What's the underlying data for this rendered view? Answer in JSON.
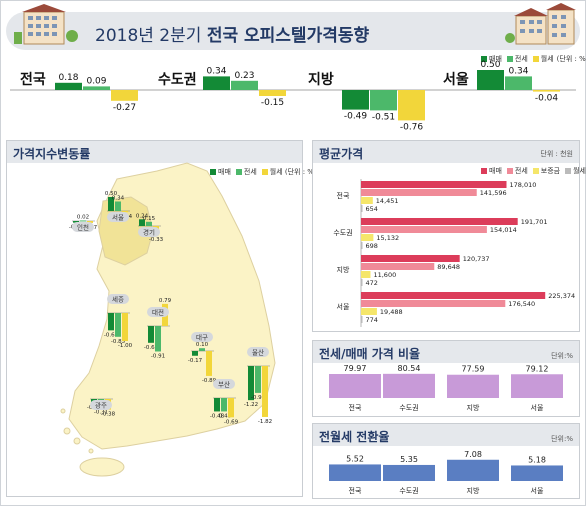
{
  "title_prefix": "2018년 2분기",
  "title_main": "전국 오피스텔가격동향",
  "legend": {
    "sale": "매매",
    "jeonse": "전세",
    "monthly": "월세",
    "monthly_unit": "월세 (단위 : %)"
  },
  "top_unit": "(단위 : %)",
  "colors": {
    "sale": "#138a36",
    "jeonse": "#4cb86a",
    "monthly": "#f2d63a",
    "avg_sale": "#dc3c5a",
    "avg_jeonse": "#f08a98",
    "avg_deposit": "#f5e66a",
    "ratio": "#c89ad8",
    "conv": "#5a7ec2"
  },
  "chart_data": [
    {
      "type": "bar",
      "id": "top-changes",
      "categories": [
        "전국",
        "수도권",
        "지방",
        "서울"
      ],
      "series": [
        {
          "name": "매매",
          "values": [
            0.18,
            0.34,
            -0.49,
            0.5
          ]
        },
        {
          "name": "전세",
          "values": [
            0.09,
            0.23,
            -0.51,
            0.34
          ]
        },
        {
          "name": "월세",
          "values": [
            -0.27,
            -0.15,
            -0.76,
            -0.04
          ]
        }
      ]
    },
    {
      "type": "bar",
      "id": "map-changes",
      "title": "가격지수변동률",
      "unit": "(단위 : %)",
      "regions": [
        {
          "name": "인천",
          "values": [
            -0.06,
            0.02,
            -0.07
          ]
        },
        {
          "name": "서울",
          "values": [
            0.5,
            0.34,
            -0.04
          ]
        },
        {
          "name": "경기",
          "values": [
            0.24,
            0.15,
            -0.33
          ]
        },
        {
          "name": "세종",
          "values": [
            -0.62,
            -0.85,
            -1.0
          ]
        },
        {
          "name": "대전",
          "values": [
            -0.6,
            -0.91,
            0.79
          ]
        },
        {
          "name": "대구",
          "values": [
            -0.17,
            0.1,
            -0.89
          ]
        },
        {
          "name": "울산",
          "values": [
            -1.22,
            -0.96,
            -1.82
          ]
        },
        {
          "name": "부산",
          "values": [
            -0.48,
            -0.48,
            -0.69
          ]
        },
        {
          "name": "광주",
          "values": [
            -0.14,
            -0.31,
            -0.38
          ]
        }
      ]
    },
    {
      "type": "bar",
      "id": "avg-price",
      "title": "평균가격",
      "unit": "단위 : 천원",
      "categories": [
        "전국",
        "수도권",
        "지방",
        "서울"
      ],
      "series": [
        {
          "name": "매매",
          "values": [
            178010,
            191701,
            120737,
            225374
          ]
        },
        {
          "name": "전세",
          "values": [
            141596,
            154014,
            89648,
            176540
          ]
        },
        {
          "name": "보증금",
          "values": [
            14451,
            15132,
            11600,
            19488
          ]
        },
        {
          "name": "월세",
          "values": [
            654,
            698,
            472,
            774
          ]
        }
      ],
      "value_labels": [
        [
          "178,010",
          "141,596",
          "14,451",
          "654"
        ],
        [
          "191,701",
          "154,014",
          "15,132",
          "698"
        ],
        [
          "120,737",
          "89,648",
          "11,600",
          "472"
        ],
        [
          "225,374",
          "176,540",
          "19,488",
          "774"
        ]
      ]
    },
    {
      "type": "bar",
      "id": "ratio",
      "title": "전세/매매 가격 비율",
      "unit": "단위:%",
      "categories": [
        "전국",
        "수도권",
        "지방",
        "서울"
      ],
      "values": [
        79.97,
        80.54,
        77.59,
        79.12
      ]
    },
    {
      "type": "bar",
      "id": "conversion",
      "title": "전월세 전환율",
      "unit": "단위:%",
      "categories": [
        "전국",
        "수도권",
        "지방",
        "서울"
      ],
      "values": [
        5.52,
        5.35,
        7.08,
        5.18
      ]
    }
  ],
  "avg_legend": [
    "매매",
    "전세",
    "보증금",
    "월세"
  ]
}
